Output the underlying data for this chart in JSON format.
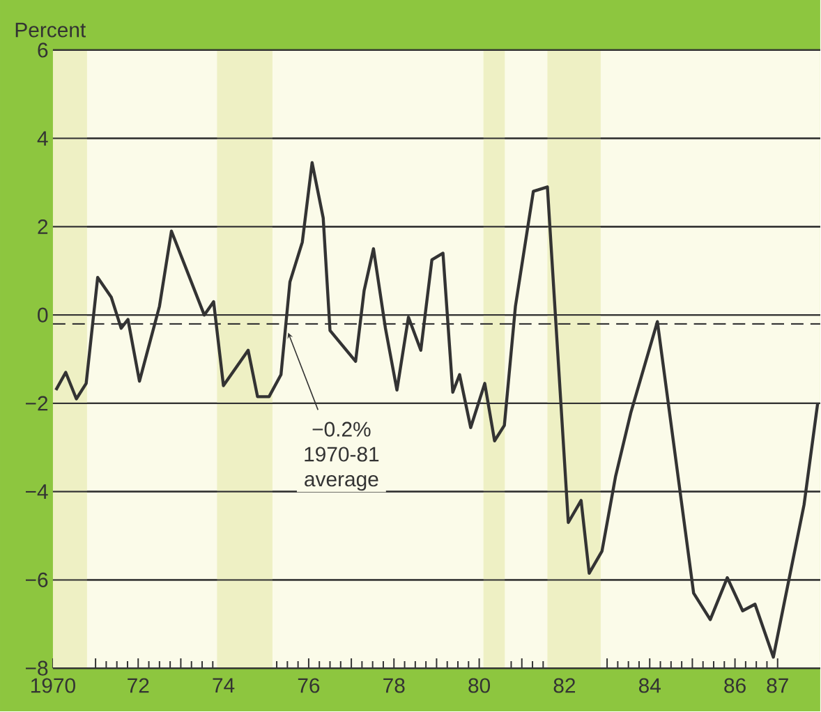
{
  "chart_data": {
    "type": "line",
    "ylabel": "Percent",
    "x": [
      1970.07,
      1970.3,
      1970.55,
      1970.78,
      1971.05,
      1971.37,
      1971.6,
      1971.76,
      1972.03,
      1972.5,
      1972.78,
      1973.55,
      1973.77,
      1974.0,
      1974.58,
      1974.8,
      1975.07,
      1975.35,
      1975.56,
      1975.85,
      1976.08,
      1976.34,
      1976.5,
      1977.1,
      1977.3,
      1977.52,
      1977.8,
      1978.07,
      1978.34,
      1978.63,
      1978.89,
      1979.15,
      1979.38,
      1979.54,
      1979.8,
      1980.13,
      1980.36,
      1980.59,
      1980.85,
      1981.27,
      1981.6,
      1982.09,
      1982.39,
      1982.58,
      1982.88,
      1983.2,
      1983.56,
      1984.18,
      1985.03,
      1985.42,
      1985.82,
      1986.18,
      1986.47,
      1986.9,
      1987.16,
      1987.62,
      1987.94
    ],
    "series": [
      {
        "color": "#333333",
        "values": [
          -1.7,
          -1.3,
          -1.9,
          -1.55,
          0.85,
          0.4,
          -0.3,
          -0.1,
          -1.5,
          0.2,
          1.9,
          0.0,
          0.3,
          -1.6,
          -0.8,
          -1.85,
          -1.85,
          -1.35,
          0.75,
          1.65,
          3.45,
          2.2,
          -0.35,
          -1.05,
          0.55,
          1.5,
          -0.3,
          -1.7,
          -0.05,
          -0.8,
          1.25,
          1.4,
          -1.75,
          -1.35,
          -2.55,
          -1.55,
          -2.85,
          -2.5,
          0.2,
          2.8,
          2.9,
          -4.7,
          -4.2,
          -5.85,
          -5.35,
          -3.65,
          -2.2,
          -0.15,
          -6.3,
          -6.9,
          -5.95,
          -6.7,
          -6.55,
          -7.75,
          -6.5,
          -4.3,
          -2.0
        ]
      }
    ],
    "xlim": [
      1970,
      1988
    ],
    "xticks": [
      {
        "value": 1970,
        "label": "1970"
      },
      {
        "value": 1971,
        "label": null
      },
      {
        "value": 1972,
        "label": "72"
      },
      {
        "value": 1973,
        "label": null
      },
      {
        "value": 1974,
        "label": "74"
      },
      {
        "value": 1975,
        "label": null
      },
      {
        "value": 1976,
        "label": "76"
      },
      {
        "value": 1977,
        "label": null
      },
      {
        "value": 1978,
        "label": "78"
      },
      {
        "value": 1979,
        "label": null
      },
      {
        "value": 1980,
        "label": "80"
      },
      {
        "value": 1981,
        "label": null
      },
      {
        "value": 1982,
        "label": "82"
      },
      {
        "value": 1983,
        "label": null
      },
      {
        "value": 1984,
        "label": "84"
      },
      {
        "value": 1985,
        "label": null
      },
      {
        "value": 1986,
        "label": "86"
      },
      {
        "value": 1987,
        "label": "87"
      }
    ],
    "ylim": [
      -8,
      6
    ],
    "yticks": [
      {
        "value": -8,
        "label": "−8"
      },
      {
        "value": -6,
        "label": "−6"
      },
      {
        "value": -4,
        "label": "−4"
      },
      {
        "value": -2,
        "label": "−2"
      },
      0,
      2,
      4,
      6
    ],
    "grid": "y",
    "ref_lines": [
      {
        "axis": "y",
        "value": -0.2,
        "label": "−0.2% 1970-81 average",
        "line_style": "dashed",
        "color": "#333333"
      }
    ],
    "bands": [
      {
        "axis": "x",
        "from": 1970,
        "to": 1970.8,
        "color": "#eef0c4"
      },
      {
        "axis": "x",
        "from": 1973.85,
        "to": 1975.15,
        "color": "#eef0c4"
      },
      {
        "axis": "x",
        "from": 1980.1,
        "to": 1980.6,
        "color": "#eef0c4"
      },
      {
        "axis": "x",
        "from": 1981.6,
        "to": 1982.85,
        "color": "#eef0c4"
      }
    ]
  }
}
